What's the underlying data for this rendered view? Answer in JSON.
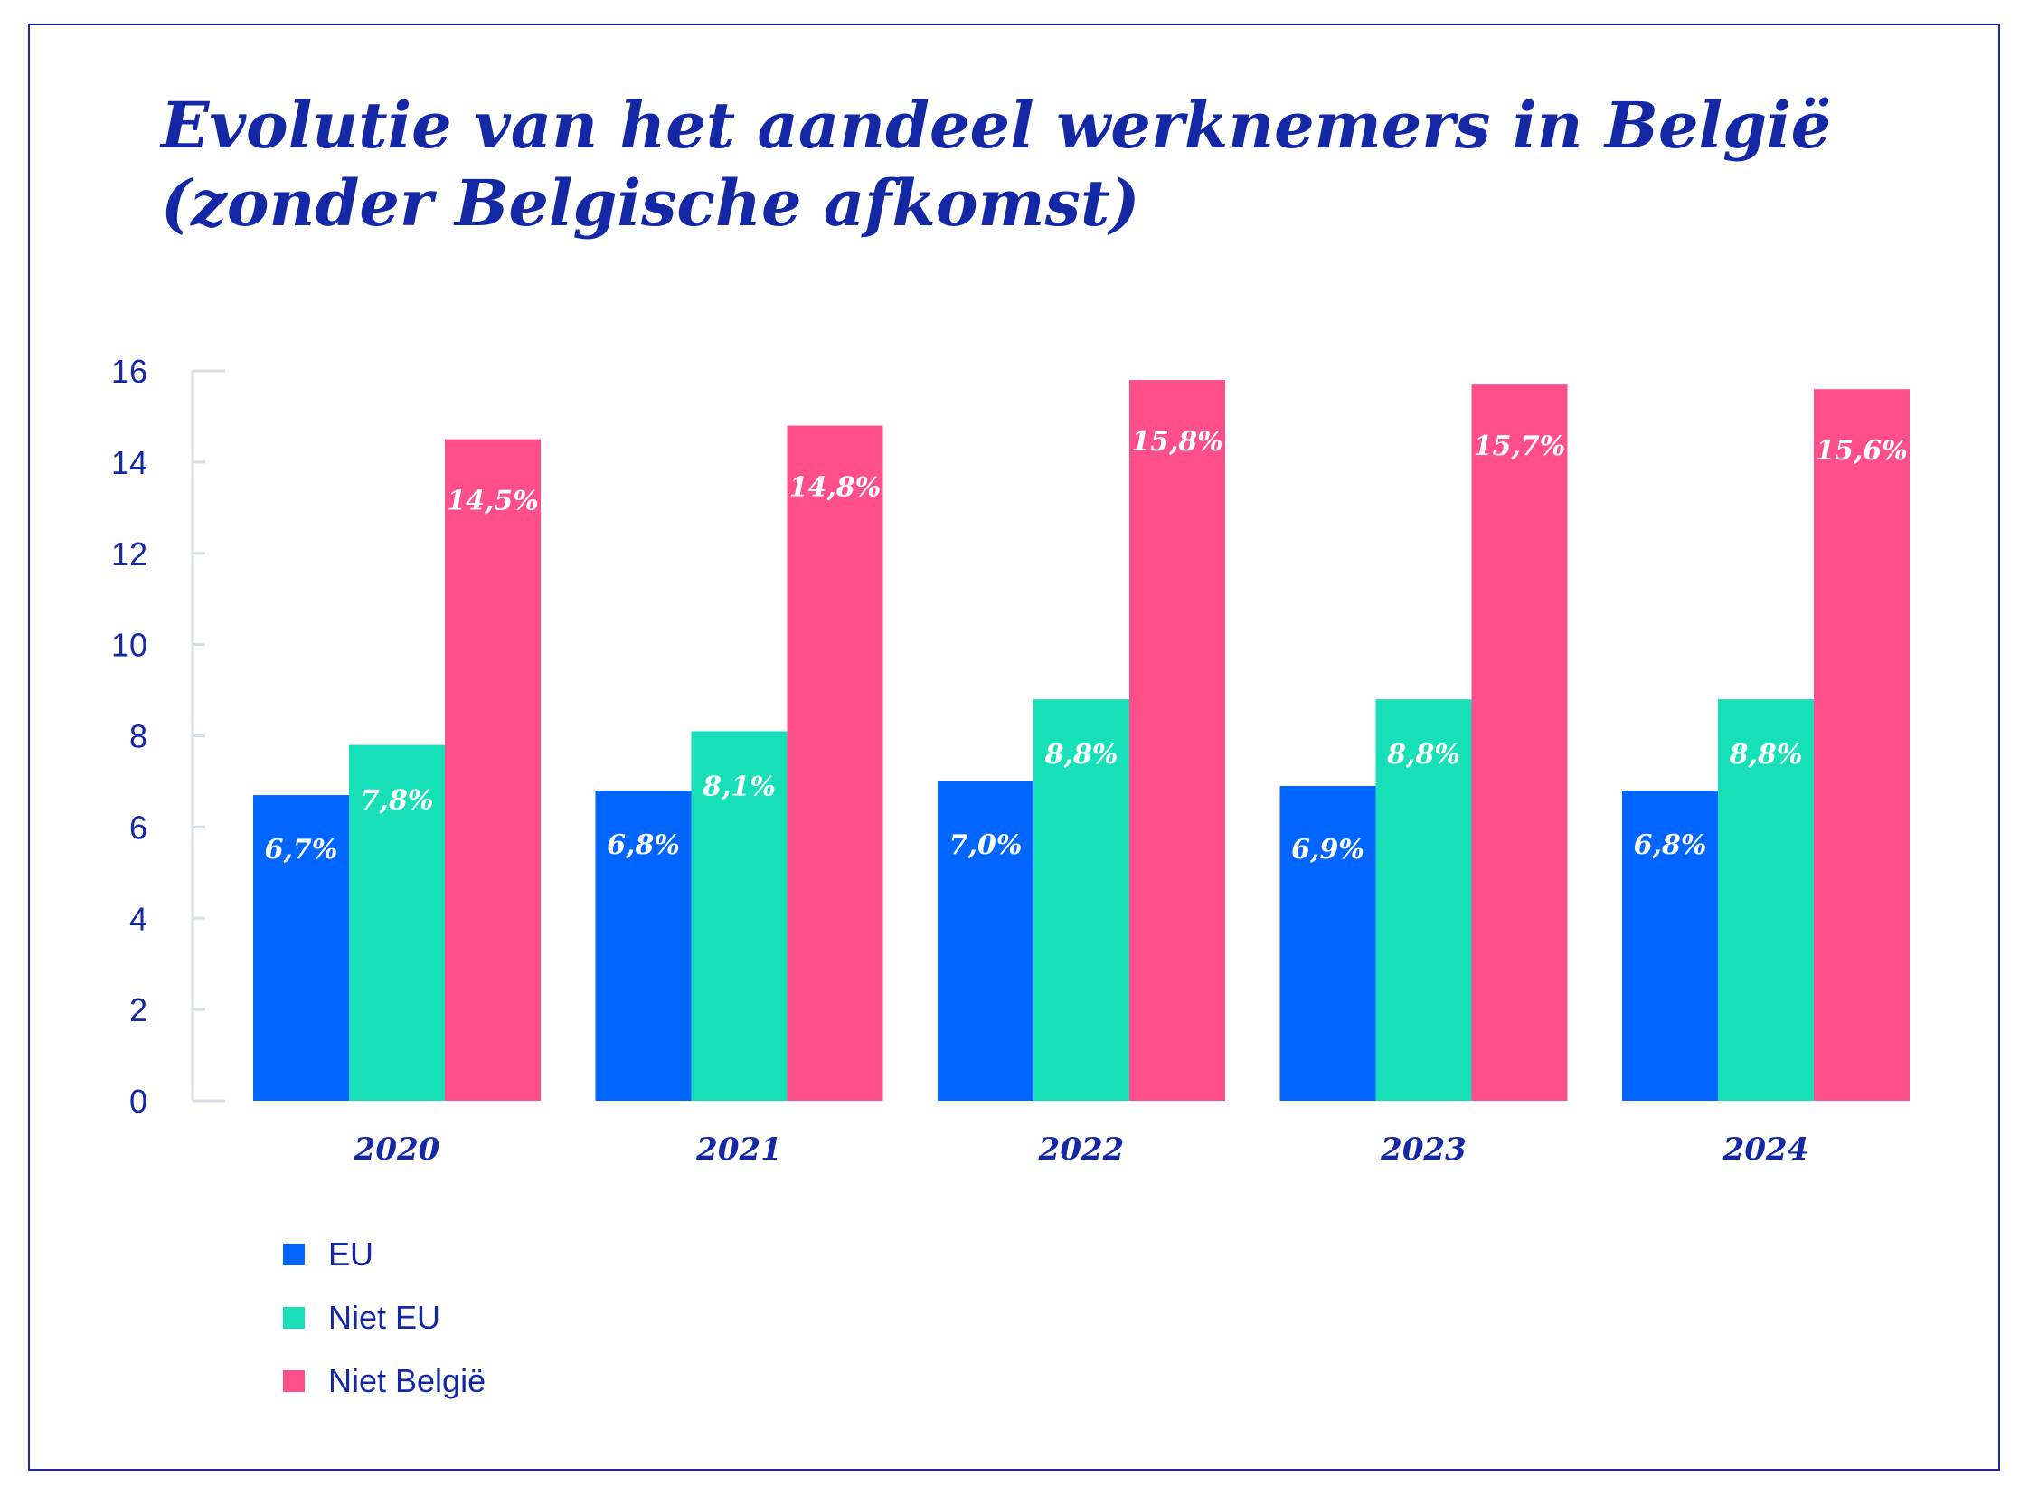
{
  "title_line1": "Evolutie van het aandeel werknemers in België",
  "title_line2": "(zonder Belgische afkomst)",
  "colors": {
    "frame": "#1e2aa0",
    "text": "#1428a6",
    "axis": "#d9dde6"
  },
  "chart_data": {
    "type": "bar",
    "categories": [
      "2020",
      "2021",
      "2022",
      "2023",
      "2024"
    ],
    "series": [
      {
        "name": "EU",
        "color": "#0066ff",
        "values": [
          6.7,
          6.8,
          7.0,
          6.9,
          6.8
        ],
        "labels": [
          "6,7%",
          "6,8%",
          "7,0%",
          "6,9%",
          "6,8%"
        ]
      },
      {
        "name": "Niet EU",
        "color": "#17e0b8",
        "values": [
          7.8,
          8.1,
          8.8,
          8.8,
          8.8
        ],
        "labels": [
          "7,8%",
          "8,1%",
          "8,8%",
          "8,8%",
          "8,8%"
        ]
      },
      {
        "name": "Niet België",
        "color": "#ff4f8b",
        "values": [
          14.5,
          14.8,
          15.8,
          15.7,
          15.6
        ],
        "labels": [
          "14,5%",
          "14,8%",
          "15,8%",
          "15,7%",
          "15,6%"
        ]
      }
    ],
    "ylim": [
      0,
      16
    ],
    "yticks": [
      0,
      2,
      4,
      6,
      8,
      10,
      12,
      14,
      16
    ],
    "legend_position": "bottom-left",
    "grid": false
  }
}
